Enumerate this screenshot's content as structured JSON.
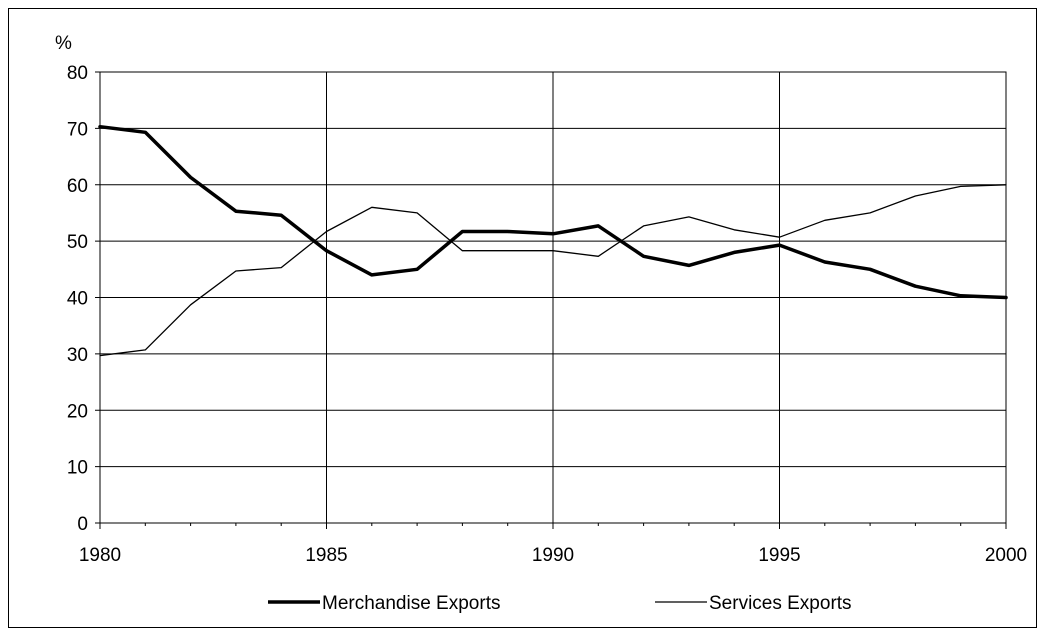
{
  "chart_data": {
    "type": "line",
    "unit_label": "%",
    "x": [
      1980,
      1981,
      1982,
      1983,
      1984,
      1985,
      1986,
      1987,
      1988,
      1989,
      1990,
      1991,
      1992,
      1993,
      1994,
      1995,
      1996,
      1997,
      1998,
      1999,
      2000
    ],
    "x_ticks": [
      "1980",
      "1985",
      "1990",
      "1995",
      "2000"
    ],
    "y_ticks": [
      "0",
      "10",
      "20",
      "30",
      "40",
      "50",
      "60",
      "70",
      "80"
    ],
    "xlim": [
      1980,
      2000
    ],
    "ylim": [
      0,
      80
    ],
    "grid": true,
    "legend_position": "bottom",
    "series": [
      {
        "name": "Merchandise Exports",
        "color": "#000000",
        "weight": "thick",
        "values": [
          70.3,
          69.3,
          61.3,
          55.3,
          54.6,
          48.3,
          44.0,
          45.0,
          51.7,
          51.7,
          51.3,
          52.7,
          47.3,
          45.7,
          48.0,
          49.3,
          46.3,
          45.0,
          42.0,
          40.3,
          40.0
        ]
      },
      {
        "name": "Services Exports",
        "color": "#000000",
        "weight": "thin",
        "values": [
          29.7,
          30.7,
          38.7,
          44.7,
          45.3,
          51.7,
          56.0,
          55.0,
          48.3,
          48.3,
          48.3,
          47.3,
          52.7,
          54.3,
          52.0,
          50.7,
          53.7,
          55.0,
          58.0,
          59.7,
          60.0
        ]
      }
    ]
  }
}
